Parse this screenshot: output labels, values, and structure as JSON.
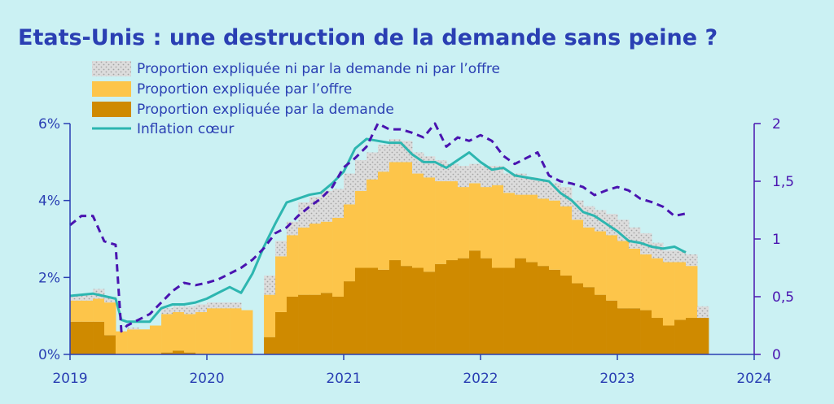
{
  "chart_data": {
    "type": "bar",
    "title": "Etats-Unis : une destruction de la demande sans peine ?",
    "x_tick_labels": [
      "2019",
      "2020",
      "2021",
      "2022",
      "2023",
      "2024"
    ],
    "x_range": [
      2019.0,
      2024.0
    ],
    "y_left": {
      "range": [
        0,
        6
      ],
      "tick_values": [
        0,
        2,
        4,
        6
      ],
      "tick_labels": [
        "0%",
        "2%",
        "4%",
        "6%"
      ]
    },
    "y_right": {
      "range": [
        0,
        2
      ],
      "tick_values": [
        0,
        0.5,
        1,
        1.5,
        2
      ],
      "tick_labels": [
        "0",
        "0,5",
        "1",
        "1,5",
        "2"
      ]
    },
    "legend_position": "top-left",
    "colors": {
      "background": "#cbf1f3",
      "demand": "#cf8a00",
      "supply": "#fdc54a",
      "unexplained": "#dcdcdc",
      "unexplained_dots": "#a4a4a4",
      "core_inflation": "#2db6b0",
      "dashed_line": "#4a14b0",
      "text": "#2a3fb3",
      "axis": "#2a3fb3"
    },
    "legend": [
      {
        "label": "Proportion expliquée ni par la demande ni par l’offre",
        "swatch": "dotted"
      },
      {
        "label": "Proportion expliquée par l’offre",
        "swatch": "supply"
      },
      {
        "label": "Proportion expliquée par la demande",
        "swatch": "demand"
      },
      {
        "label": "Inflation cœur",
        "swatch": "line"
      }
    ],
    "x": [
      2019.0,
      2019.083,
      2019.167,
      2019.25,
      2019.333,
      2019.417,
      2019.5,
      2019.583,
      2019.667,
      2019.75,
      2019.833,
      2019.917,
      2020.0,
      2020.083,
      2020.167,
      2020.25,
      2020.333,
      2020.417,
      2020.5,
      2020.583,
      2020.667,
      2020.75,
      2020.833,
      2020.917,
      2021.0,
      2021.083,
      2021.167,
      2021.25,
      2021.333,
      2021.417,
      2021.5,
      2021.583,
      2021.667,
      2021.75,
      2021.833,
      2021.917,
      2022.0,
      2022.083,
      2022.167,
      2022.25,
      2022.333,
      2022.417,
      2022.5,
      2022.583,
      2022.667,
      2022.75,
      2022.833,
      2022.917,
      2023.0,
      2023.083,
      2023.167,
      2023.25,
      2023.333,
      2023.417,
      2023.5,
      2023.583
    ],
    "series": [
      {
        "key": "demand",
        "label": "Proportion expliquée par la demande",
        "values": [
          0.85,
          0.85,
          0.85,
          0.5,
          0,
          0,
          0,
          0,
          0.05,
          0.1,
          0.05,
          0,
          0,
          0,
          0,
          0,
          0,
          0.45,
          1.1,
          1.5,
          1.55,
          1.55,
          1.6,
          1.5,
          1.9,
          2.25,
          2.25,
          2.2,
          2.45,
          2.3,
          2.25,
          2.15,
          2.35,
          2.45,
          2.5,
          2.7,
          2.5,
          2.25,
          2.25,
          2.5,
          2.4,
          2.3,
          2.2,
          2.05,
          1.85,
          1.75,
          1.55,
          1.4,
          1.2,
          1.2,
          1.15,
          0.95,
          0.75,
          0.9,
          0.95,
          0.95
        ]
      },
      {
        "key": "supply",
        "label": "Proportion expliquée par l’offre",
        "values": [
          0.55,
          0.55,
          0.6,
          0.85,
          0.6,
          0.65,
          0.65,
          0.75,
          1.0,
          1.0,
          1.0,
          1.1,
          1.2,
          1.2,
          1.2,
          1.15,
          0,
          1.1,
          1.45,
          1.6,
          1.75,
          1.85,
          1.85,
          2.05,
          2.0,
          2.0,
          2.3,
          2.55,
          2.55,
          2.7,
          2.45,
          2.45,
          2.15,
          2.05,
          1.85,
          1.75,
          1.85,
          2.15,
          1.95,
          1.65,
          1.75,
          1.75,
          1.8,
          1.8,
          1.65,
          1.55,
          1.65,
          1.7,
          1.75,
          1.55,
          1.45,
          1.55,
          1.65,
          1.5,
          1.35,
          0.0
        ]
      },
      {
        "key": "unexplained",
        "label": "Proportion expliquée ni par la demande ni par l’offre",
        "values": [
          0.15,
          0.15,
          0.25,
          0.15,
          0.0,
          0.05,
          0.0,
          0.0,
          0.15,
          0.15,
          0.2,
          0.2,
          0.15,
          0.15,
          0.15,
          0.0,
          0.0,
          0.5,
          0.4,
          0.35,
          0.65,
          0.7,
          0.8,
          0.75,
          0.8,
          0.8,
          0.7,
          0.7,
          0.6,
          0.55,
          0.55,
          0.55,
          0.55,
          0.45,
          0.55,
          0.5,
          0.55,
          0.5,
          0.5,
          0.55,
          0.45,
          0.45,
          0.45,
          0.5,
          0.5,
          0.55,
          0.55,
          0.55,
          0.55,
          0.55,
          0.55,
          0.4,
          0.3,
          0.3,
          0.3,
          0.3
        ]
      },
      {
        "key": "core_inflation",
        "label": "Inflation cœur",
        "type": "line",
        "axis": "left",
        "points": [
          [
            2019.0,
            1.52
          ],
          [
            2019.083,
            1.55
          ],
          [
            2019.167,
            1.58
          ],
          [
            2019.333,
            1.45
          ],
          [
            2019.375,
            0.9
          ],
          [
            2019.417,
            0.85
          ],
          [
            2019.5,
            0.85
          ],
          [
            2019.583,
            0.85
          ],
          [
            2019.667,
            1.2
          ],
          [
            2019.75,
            1.3
          ],
          [
            2019.833,
            1.3
          ],
          [
            2019.917,
            1.35
          ],
          [
            2020.0,
            1.45
          ],
          [
            2020.083,
            1.6
          ],
          [
            2020.167,
            1.75
          ],
          [
            2020.25,
            1.6
          ],
          [
            2020.333,
            2.1
          ],
          [
            2020.417,
            2.8
          ],
          [
            2020.5,
            3.4
          ],
          [
            2020.583,
            3.95
          ],
          [
            2020.667,
            4.05
          ],
          [
            2020.75,
            4.15
          ],
          [
            2020.833,
            4.2
          ],
          [
            2020.917,
            4.45
          ],
          [
            2021.0,
            4.75
          ],
          [
            2021.083,
            5.35
          ],
          [
            2021.167,
            5.6
          ],
          [
            2021.25,
            5.55
          ],
          [
            2021.333,
            5.5
          ],
          [
            2021.417,
            5.5
          ],
          [
            2021.5,
            5.2
          ],
          [
            2021.583,
            5.0
          ],
          [
            2021.667,
            5.0
          ],
          [
            2021.75,
            4.85
          ],
          [
            2021.833,
            5.05
          ],
          [
            2021.917,
            5.25
          ],
          [
            2022.0,
            5.0
          ],
          [
            2022.083,
            4.8
          ],
          [
            2022.167,
            4.85
          ],
          [
            2022.25,
            4.65
          ],
          [
            2022.333,
            4.6
          ],
          [
            2022.417,
            4.55
          ],
          [
            2022.5,
            4.5
          ],
          [
            2022.583,
            4.2
          ],
          [
            2022.667,
            4.0
          ],
          [
            2022.75,
            3.7
          ],
          [
            2022.833,
            3.6
          ],
          [
            2022.917,
            3.4
          ],
          [
            2023.0,
            3.2
          ],
          [
            2023.083,
            2.95
          ],
          [
            2023.167,
            2.9
          ],
          [
            2023.25,
            2.8
          ],
          [
            2023.333,
            2.75
          ],
          [
            2023.417,
            2.8
          ],
          [
            2023.5,
            2.65
          ]
        ]
      },
      {
        "key": "dashed",
        "label": "",
        "type": "line",
        "axis": "right",
        "style": "dashed",
        "points": [
          [
            2019.0,
            1.12
          ],
          [
            2019.083,
            1.2
          ],
          [
            2019.167,
            1.2
          ],
          [
            2019.25,
            0.98
          ],
          [
            2019.333,
            0.95
          ],
          [
            2019.375,
            0.2
          ],
          [
            2019.417,
            0.25
          ],
          [
            2019.5,
            0.3
          ],
          [
            2019.583,
            0.35
          ],
          [
            2019.667,
            0.45
          ],
          [
            2019.75,
            0.55
          ],
          [
            2019.833,
            0.62
          ],
          [
            2019.917,
            0.6
          ],
          [
            2020.0,
            0.62
          ],
          [
            2020.083,
            0.65
          ],
          [
            2020.167,
            0.7
          ],
          [
            2020.25,
            0.75
          ],
          [
            2020.333,
            0.82
          ],
          [
            2020.417,
            0.92
          ],
          [
            2020.5,
            1.05
          ],
          [
            2020.583,
            1.1
          ],
          [
            2020.667,
            1.2
          ],
          [
            2020.75,
            1.28
          ],
          [
            2020.833,
            1.35
          ],
          [
            2020.917,
            1.45
          ],
          [
            2021.0,
            1.62
          ],
          [
            2021.083,
            1.7
          ],
          [
            2021.167,
            1.8
          ],
          [
            2021.25,
            2.0
          ],
          [
            2021.333,
            1.95
          ],
          [
            2021.417,
            1.95
          ],
          [
            2021.5,
            1.92
          ],
          [
            2021.583,
            1.88
          ],
          [
            2021.667,
            2.0
          ],
          [
            2021.75,
            1.8
          ],
          [
            2021.833,
            1.88
          ],
          [
            2021.917,
            1.85
          ],
          [
            2022.0,
            1.9
          ],
          [
            2022.083,
            1.85
          ],
          [
            2022.167,
            1.72
          ],
          [
            2022.25,
            1.65
          ],
          [
            2022.333,
            1.7
          ],
          [
            2022.417,
            1.75
          ],
          [
            2022.5,
            1.55
          ],
          [
            2022.583,
            1.5
          ],
          [
            2022.667,
            1.48
          ],
          [
            2022.75,
            1.45
          ],
          [
            2022.833,
            1.38
          ],
          [
            2022.917,
            1.42
          ],
          [
            2023.0,
            1.45
          ],
          [
            2023.083,
            1.42
          ],
          [
            2023.167,
            1.35
          ],
          [
            2023.25,
            1.32
          ],
          [
            2023.333,
            1.28
          ],
          [
            2023.417,
            1.2
          ],
          [
            2023.5,
            1.22
          ]
        ]
      }
    ]
  }
}
